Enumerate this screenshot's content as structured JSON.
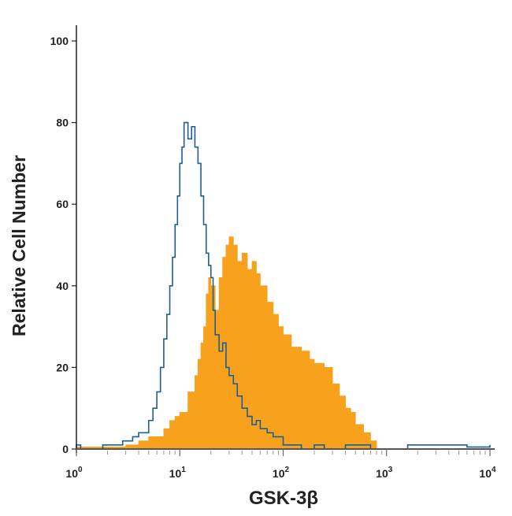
{
  "chart_data": {
    "type": "area",
    "title": "",
    "xlabel": "GSK-3β",
    "ylabel": "Relative Cell Number",
    "xscale": "log",
    "xlim": [
      1,
      10000
    ],
    "ylim": [
      0,
      100
    ],
    "grid": false,
    "x_ticks": [
      {
        "base": "10",
        "exp": "0"
      },
      {
        "base": "10",
        "exp": "1"
      },
      {
        "base": "10",
        "exp": "2"
      },
      {
        "base": "10",
        "exp": "3"
      },
      {
        "base": "10",
        "exp": "4"
      }
    ],
    "y_ticks": [
      "0",
      "20",
      "40",
      "60",
      "80",
      "100"
    ],
    "series": [
      {
        "style": "filled",
        "color": "#f7a11d",
        "x": [
          1,
          2,
          3,
          4,
          5,
          6,
          7,
          8,
          9,
          10,
          12,
          14,
          15,
          16,
          17,
          18,
          19,
          20,
          22,
          24,
          26,
          28,
          30,
          33,
          36,
          40,
          45,
          50,
          55,
          60,
          70,
          80,
          90,
          100,
          120,
          150,
          180,
          200,
          250,
          300,
          350,
          400,
          450,
          500,
          600,
          700,
          800
        ],
        "y": [
          0.5,
          0.5,
          1,
          2,
          3,
          3,
          5,
          7,
          8,
          9,
          14,
          18,
          22,
          26,
          30,
          38,
          42,
          40,
          34,
          42,
          47,
          50,
          52,
          50,
          46,
          48,
          44,
          46,
          43,
          40,
          36,
          33,
          30,
          28,
          25,
          24,
          22,
          21,
          20,
          16,
          13,
          10,
          9,
          6,
          4,
          2,
          0
        ]
      },
      {
        "style": "outline",
        "color": "#1f5f8f",
        "x": [
          1,
          1.1,
          1.8,
          2.2,
          2.8,
          3.5,
          4,
          5,
          5.5,
          6,
          6.5,
          7,
          7.5,
          8,
          8.5,
          9,
          9.5,
          10,
          10.5,
          11,
          12,
          13,
          14,
          15,
          16,
          17,
          18,
          19,
          20,
          21,
          22,
          24,
          26,
          28,
          30,
          33,
          36,
          40,
          45,
          50,
          55,
          60,
          70,
          80,
          100,
          120,
          150,
          200,
          250,
          400,
          700,
          1000,
          1600,
          2500,
          3500,
          6000,
          10000
        ],
        "y": [
          1,
          0,
          1,
          1,
          2,
          3,
          4,
          7,
          10,
          14,
          20,
          27,
          33,
          40,
          47,
          55,
          62,
          70,
          74,
          80,
          76,
          79,
          74,
          70,
          62,
          55,
          48,
          45,
          42,
          34,
          28,
          24,
          26,
          20,
          18,
          16,
          13,
          10,
          8,
          6,
          7,
          5,
          4,
          3,
          1,
          1,
          0,
          1,
          0,
          1,
          0,
          0,
          1,
          1,
          1,
          0.5,
          1
        ]
      }
    ]
  }
}
